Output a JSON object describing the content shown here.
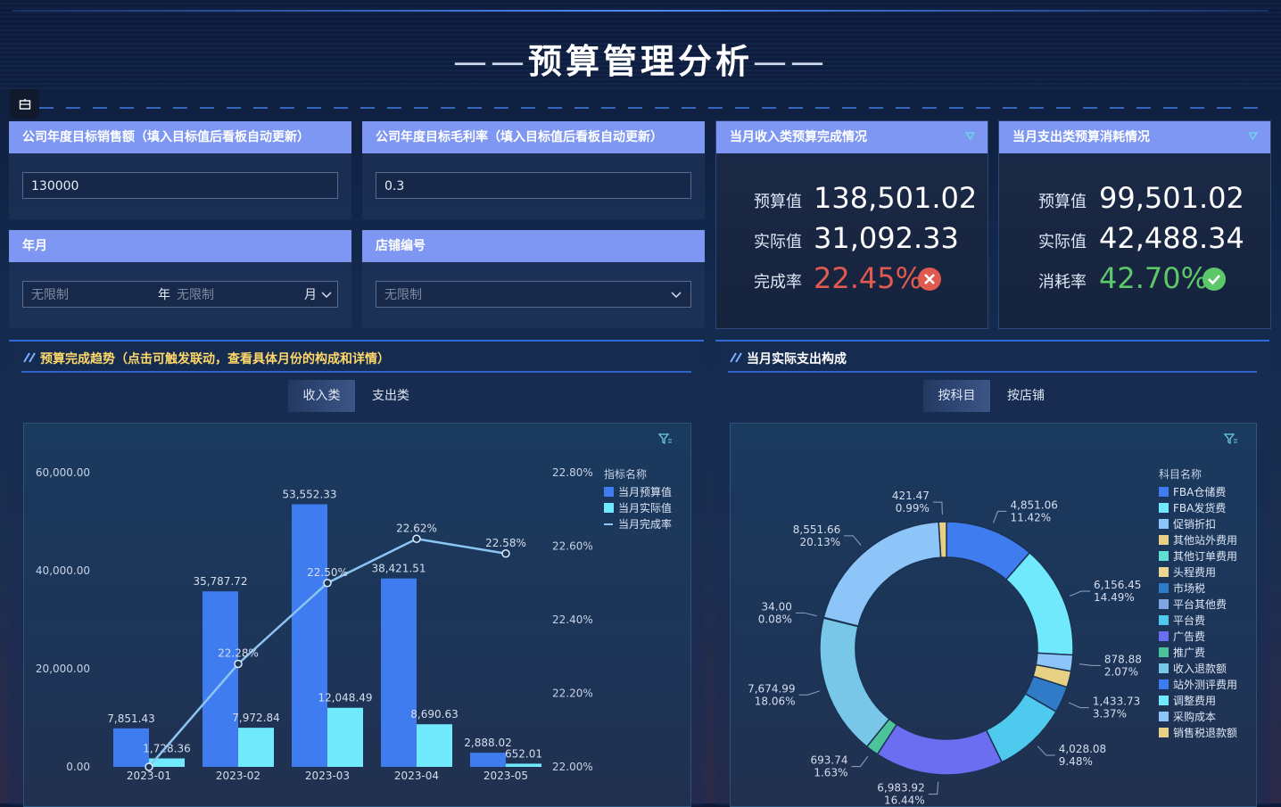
{
  "page": {
    "title": "预算管理分析",
    "menu_icon": "calendar-grid-icon"
  },
  "filters": {
    "sales_target": {
      "label": "公司年度目标销售额（填入目标值后看板自动更新）",
      "value": "130000"
    },
    "margin_target": {
      "label": "公司年度目标毛利率（填入目标值后看板自动更新）",
      "value": "0.3"
    },
    "year_month": {
      "label": "年月",
      "year_placeholder": "无限制",
      "year_unit": "年",
      "month_placeholder": "无限制",
      "month_unit": "月"
    },
    "store": {
      "label": "店铺编号",
      "placeholder": "无限制"
    }
  },
  "kpi_income": {
    "title": "当月收入类预算完成情况",
    "budget_label": "预算值",
    "budget_value": "138,501.02",
    "actual_label": "实际值",
    "actual_value": "31,092.33",
    "rate_label": "完成率",
    "rate_value": "22.45%",
    "rate_color": "#e05a4f",
    "status_icon": "x-circle-icon"
  },
  "kpi_expense": {
    "title": "当月支出类预算消耗情况",
    "budget_label": "预算值",
    "budget_value": "99,501.02",
    "actual_label": "实际值",
    "actual_value": "42,488.34",
    "rate_label": "消耗率",
    "rate_value": "42.70%",
    "rate_color": "#5cc86a",
    "status_icon": "check-circle-icon"
  },
  "trend": {
    "title": "预算完成趋势（点击可触发联动，查看具体月份的构成和详情）",
    "tabs": [
      "收入类",
      "支出类"
    ],
    "active_tab": 0
  },
  "composition": {
    "title": "当月实际支出构成",
    "tabs": [
      "按科目",
      "按店铺"
    ],
    "active_tab": 0
  },
  "chart_data": [
    {
      "type": "bar",
      "categories": [
        "2023-01",
        "2023-02",
        "2023-03",
        "2023-04",
        "2023-05"
      ],
      "series": [
        {
          "name": "当月预算值",
          "type": "bar",
          "color": "#3f7cf0",
          "values": [
            7851.43,
            35787.72,
            53552.33,
            38421.51,
            2888.02
          ],
          "labels": [
            "7,851.43",
            "35,787.72",
            "53,552.33",
            "38,421.51",
            "2,888.02"
          ]
        },
        {
          "name": "当月实际值",
          "type": "bar",
          "color": "#6fe9fb",
          "values": [
            1728.36,
            7972.84,
            12048.49,
            8690.63,
            652.01
          ],
          "labels": [
            "1,728.36",
            "7,972.84",
            "12,048.49",
            "8,690.63",
            "652.01"
          ]
        },
        {
          "name": "当月完成率",
          "type": "line",
          "color": "#8cc4f2",
          "axis": "right",
          "values": [
            22.0,
            22.28,
            22.5,
            22.62,
            22.58
          ],
          "labels": [
            "",
            "22.28%",
            "22.50%",
            "22.62%",
            "22.58%"
          ]
        }
      ],
      "legend_title": "指标名称",
      "legend_position": "right",
      "y_left": {
        "ylim": [
          0,
          60000
        ],
        "ticks": [
          "0.00",
          "20,000.00",
          "40,000.00",
          "60,000.00"
        ]
      },
      "y_right": {
        "ylim": [
          22.0,
          22.8
        ],
        "ticks": [
          "22.00%",
          "22.20%",
          "22.40%",
          "22.60%",
          "22.80%"
        ]
      }
    },
    {
      "type": "pie",
      "variant": "donut",
      "legend_title": "科目名称",
      "legend_position": "right",
      "legend": [
        {
          "name": "FBA仓储费",
          "color": "#3f7cf0"
        },
        {
          "name": "FBA发货费",
          "color": "#6fe9fb"
        },
        {
          "name": "促销折扣",
          "color": "#8ec5f8"
        },
        {
          "name": "其他站外费用",
          "color": "#e7cf84"
        },
        {
          "name": "其他订单费用",
          "color": "#5fe0d2"
        },
        {
          "name": "头程费用",
          "color": "#e9d590"
        },
        {
          "name": "市场税",
          "color": "#2f7bc8"
        },
        {
          "name": "平台其他费",
          "color": "#7fa6e0"
        },
        {
          "name": "平台费",
          "color": "#4fc9ee"
        },
        {
          "name": "广告费",
          "color": "#6b6ef0"
        },
        {
          "name": "推广费",
          "color": "#4cc39a"
        },
        {
          "name": "收入退款额",
          "color": "#79c7e8"
        },
        {
          "name": "站外测评费用",
          "color": "#3f7cf0"
        },
        {
          "name": "调整费用",
          "color": "#6fe9fb"
        },
        {
          "name": "采购成本",
          "color": "#8ec5f8"
        },
        {
          "name": "销售税退款额",
          "color": "#e7cf84"
        }
      ],
      "slices": [
        {
          "value": 4851.06,
          "label": "4,851.06",
          "pct": "11.42%",
          "color": "#3f7cf0"
        },
        {
          "value": 6156.45,
          "label": "6,156.45",
          "pct": "14.49%",
          "color": "#6fe9fb"
        },
        {
          "value": 878.88,
          "label": "878.88",
          "pct": "2.07%",
          "color": "#8ec5f8"
        },
        {
          "value": 878.88,
          "label": "",
          "pct": "",
          "color": "#e7cf84"
        },
        {
          "value": 1433.73,
          "label": "1,433.73",
          "pct": "3.37%",
          "color": "#2f7bc8"
        },
        {
          "value": 4028.08,
          "label": "4,028.08",
          "pct": "9.48%",
          "color": "#4fc9ee"
        },
        {
          "value": 6983.92,
          "label": "6,983.92",
          "pct": "16.44%",
          "color": "#6b6ef0"
        },
        {
          "value": 693.74,
          "label": "693.74",
          "pct": "1.63%",
          "color": "#4cc39a"
        },
        {
          "value": 7674.99,
          "label": "7,674.99",
          "pct": "18.06%",
          "color": "#79c7e8"
        },
        {
          "value": 34.0,
          "label": "34.00",
          "pct": "0.08%",
          "color": "#3f7cf0"
        },
        {
          "value": 8551.66,
          "label": "8,551.66",
          "pct": "20.13%",
          "color": "#8ec5f8"
        },
        {
          "value": 421.47,
          "label": "421.47",
          "pct": "0.99%",
          "color": "#e7cf84"
        }
      ]
    }
  ]
}
